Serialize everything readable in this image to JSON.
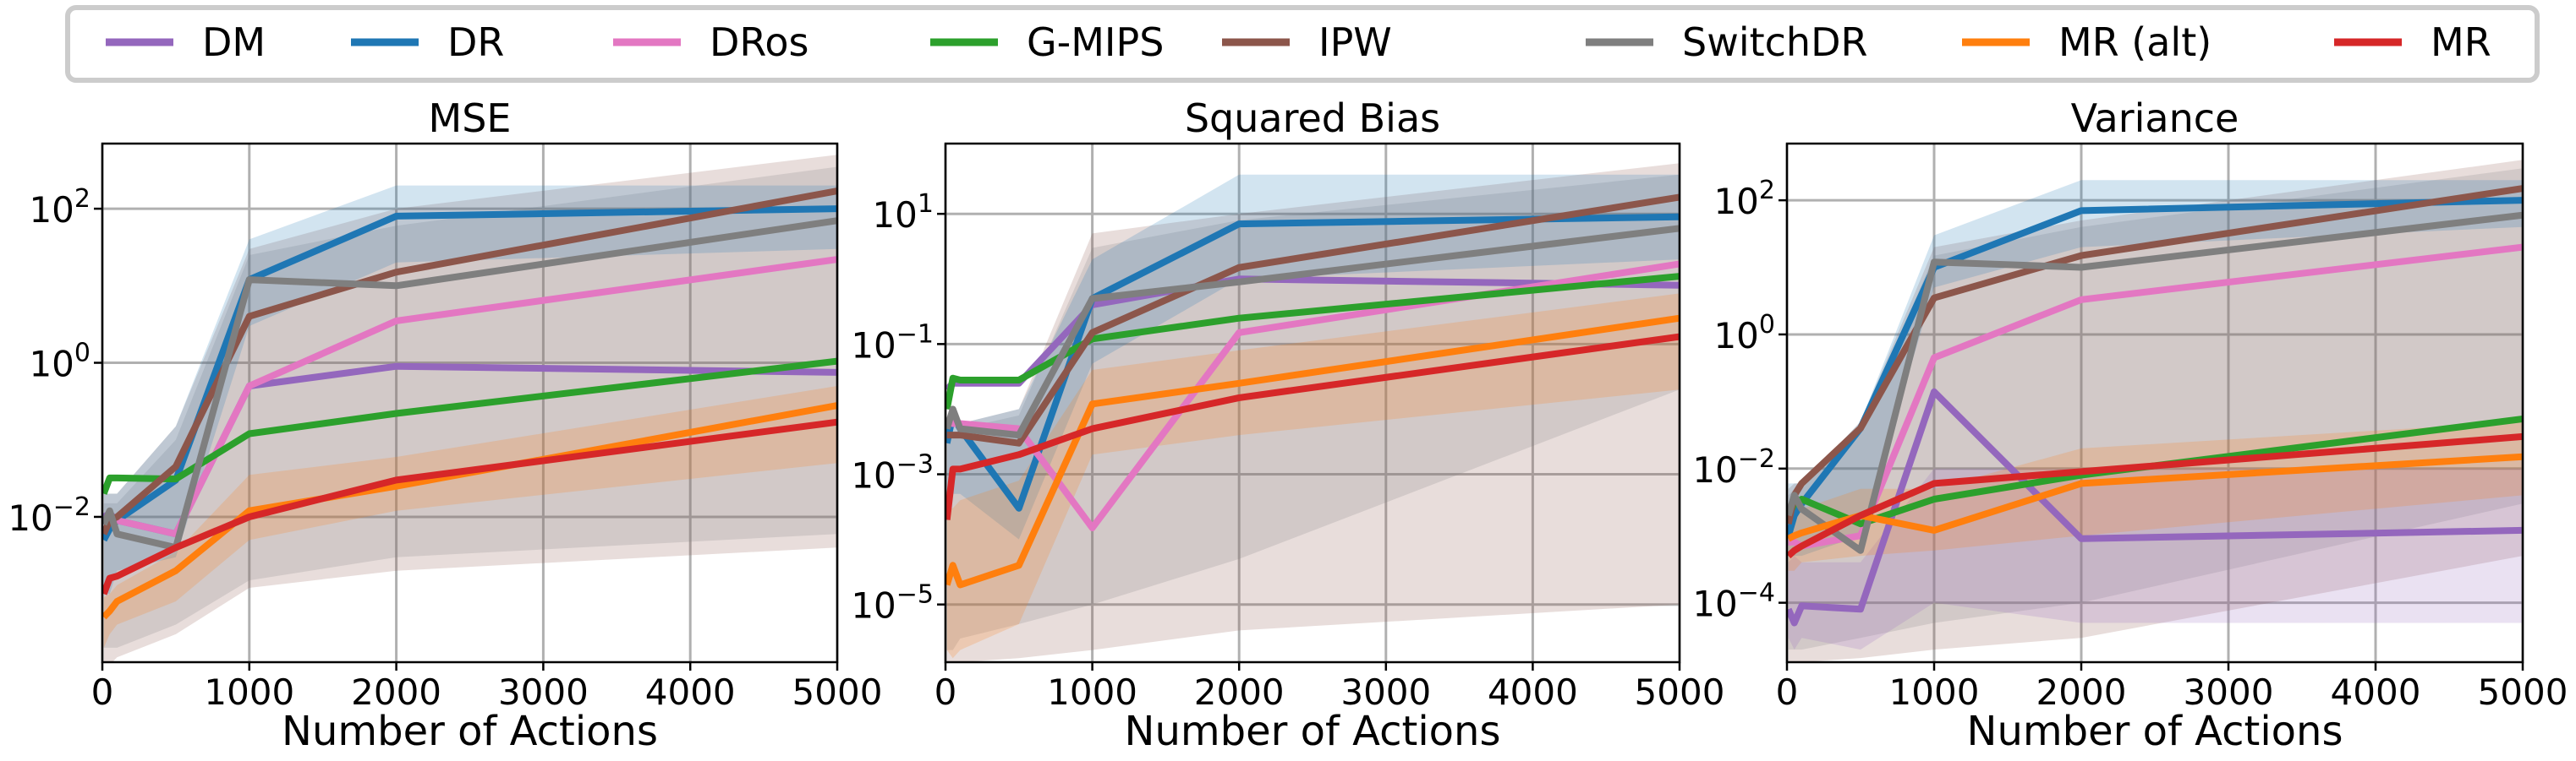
{
  "legend": {
    "placement": "top (above panels)",
    "entries": [
      {
        "name": "DM",
        "color": "#9467bd"
      },
      {
        "name": "DR",
        "color": "#1f77b4"
      },
      {
        "name": "DRos",
        "color": "#e377c2"
      },
      {
        "name": "G-MIPS",
        "color": "#2ca02c"
      },
      {
        "name": "IPW",
        "color": "#8c564b"
      },
      {
        "name": "SwitchDR",
        "color": "#7f7f7f"
      },
      {
        "name": "MR (alt)",
        "color": "#ff7f0e"
      },
      {
        "name": "MR",
        "color": "#d62728"
      }
    ]
  },
  "chart_data": [
    {
      "type": "line",
      "title": "MSE",
      "xlabel": "Number of Actions",
      "ylabel": "",
      "yscale": "log",
      "grid": true,
      "xlim": [
        0,
        5000
      ],
      "ylim": [
        0.00013,
        700
      ],
      "x": [
        10,
        50,
        100,
        500,
        1000,
        2000,
        5000
      ],
      "xticks": [
        {
          "v": 0,
          "t": "0"
        },
        {
          "v": 1000,
          "t": "1000"
        },
        {
          "v": 2000,
          "t": "2000"
        },
        {
          "v": 3000,
          "t": "3000"
        },
        {
          "v": 4000,
          "t": "4000"
        },
        {
          "v": 5000,
          "t": "5000"
        }
      ],
      "yticks": [
        {
          "v": 0.01,
          "base": "10",
          "exp": "−2"
        },
        {
          "v": 1,
          "base": "10",
          "exp": "0"
        },
        {
          "v": 100,
          "base": "10",
          "exp": "2"
        }
      ],
      "bands": [
        {
          "color": "#8c564b",
          "lo": [
            0.00011,
            0.00012,
            0.00015,
            0.0003,
            0.0012,
            0.002,
            0.004
          ],
          "hi": [
            0.02,
            0.02,
            0.02,
            0.15,
            30,
            100,
            500
          ]
        },
        {
          "color": "#7f7f7f",
          "lo": [
            0.0002,
            0.0002,
            0.0002,
            0.0004,
            0.0015,
            0.003,
            0.006
          ],
          "hi": [
            0.015,
            0.015,
            0.015,
            0.1,
            25,
            60,
            350
          ]
        },
        {
          "color": "#1f77b4",
          "lo": [
            0.001,
            0.001,
            0.002,
            0.003,
            3,
            20,
            30
          ],
          "hi": [
            0.02,
            0.02,
            0.02,
            0.15,
            40,
            200,
            200
          ]
        },
        {
          "color": "#ff7f0e",
          "lo": [
            0.0002,
            0.0003,
            0.0004,
            0.0008,
            0.005,
            0.012,
            0.05
          ],
          "hi": [
            0.0009,
            0.001,
            0.0013,
            0.0035,
            0.035,
            0.06,
            0.5
          ]
        }
      ],
      "series": [
        {
          "name": "DM",
          "color": "#9467bd",
          "values": [
            0.01,
            0.011,
            0.009,
            0.006,
            0.5,
            0.9,
            0.75
          ]
        },
        {
          "name": "DR",
          "color": "#1f77b4",
          "values": [
            0.005,
            0.007,
            0.009,
            0.03,
            12,
            80,
            100
          ]
        },
        {
          "name": "DRos",
          "color": "#e377c2",
          "values": [
            0.008,
            0.009,
            0.009,
            0.006,
            0.5,
            3.5,
            22
          ]
        },
        {
          "name": "G-MIPS",
          "color": "#2ca02c",
          "values": [
            0.02,
            0.032,
            0.032,
            0.031,
            0.12,
            0.22,
            1.05
          ]
        },
        {
          "name": "IPW",
          "color": "#8c564b",
          "values": [
            0.006,
            0.009,
            0.01,
            0.045,
            4,
            15,
            170
          ]
        },
        {
          "name": "SwitchDR",
          "color": "#7f7f7f",
          "values": [
            0.008,
            0.012,
            0.006,
            0.004,
            12,
            10,
            70
          ]
        },
        {
          "name": "MR (alt)",
          "color": "#ff7f0e",
          "values": [
            0.0005,
            0.0006,
            0.0008,
            0.002,
            0.012,
            0.025,
            0.28
          ]
        },
        {
          "name": "MR",
          "color": "#d62728",
          "values": [
            0.001,
            0.0016,
            0.0017,
            0.004,
            0.01,
            0.03,
            0.17
          ]
        }
      ]
    },
    {
      "type": "line",
      "title": "Squared Bias",
      "xlabel": "Number of Actions",
      "ylabel": "",
      "yscale": "log",
      "grid": true,
      "xlim": [
        0,
        5000
      ],
      "ylim": [
        1.3e-06,
        120
      ],
      "x": [
        10,
        50,
        100,
        500,
        1000,
        2000,
        5000
      ],
      "xticks": [
        {
          "v": 0,
          "t": "0"
        },
        {
          "v": 1000,
          "t": "1000"
        },
        {
          "v": 2000,
          "t": "2000"
        },
        {
          "v": 3000,
          "t": "3000"
        },
        {
          "v": 4000,
          "t": "4000"
        },
        {
          "v": 5000,
          "t": "5000"
        }
      ],
      "yticks": [
        {
          "v": 1e-05,
          "base": "10",
          "exp": "−5"
        },
        {
          "v": 0.001,
          "base": "10",
          "exp": "−3"
        },
        {
          "v": 0.1,
          "base": "10",
          "exp": "−1"
        },
        {
          "v": 10,
          "base": "10",
          "exp": "1"
        }
      ],
      "bands": [
        {
          "color": "#8c564b",
          "lo": [
            1.1e-06,
            1.2e-06,
            1.3e-06,
            1.5e-06,
            2e-06,
            4e-06,
            1e-05
          ],
          "hi": [
            0.005,
            0.006,
            0.006,
            0.01,
            5,
            10,
            60
          ]
        },
        {
          "color": "#7f7f7f",
          "lo": [
            2e-06,
            2e-06,
            3e-06,
            5e-06,
            1e-05,
            5e-05,
            0.02
          ],
          "hi": [
            0.004,
            0.004,
            0.005,
            0.008,
            3,
            8,
            40
          ]
        },
        {
          "color": "#1f77b4",
          "lo": [
            0.0005,
            0.0005,
            0.0005,
            0.0001,
            0.05,
            1,
            2
          ],
          "hi": [
            0.006,
            0.006,
            0.006,
            0.01,
            2,
            40,
            40
          ]
        },
        {
          "color": "#ff7f0e",
          "lo": [
            2e-06,
            1.5e-06,
            2e-06,
            5e-06,
            0.002,
            0.004,
            0.02
          ],
          "hi": [
            0.0003,
            0.0003,
            0.0004,
            0.0008,
            0.04,
            0.08,
            0.6
          ]
        }
      ],
      "series": [
        {
          "name": "DM",
          "color": "#9467bd",
          "values": [
            0.02,
            0.025,
            0.025,
            0.025,
            0.4,
            1.0,
            0.8
          ]
        },
        {
          "name": "DR",
          "color": "#1f77b4",
          "values": [
            0.003,
            0.008,
            0.005,
            0.0003,
            0.5,
            7,
            9
          ]
        },
        {
          "name": "DRos",
          "color": "#e377c2",
          "values": [
            0.007,
            0.006,
            0.006,
            0.005,
            0.00015,
            0.15,
            1.7
          ]
        },
        {
          "name": "G-MIPS",
          "color": "#2ca02c",
          "values": [
            0.01,
            0.03,
            0.028,
            0.028,
            0.12,
            0.25,
            1.1
          ]
        },
        {
          "name": "IPW",
          "color": "#8c564b",
          "values": [
            0.004,
            0.004,
            0.004,
            0.003,
            0.15,
            1.5,
            18
          ]
        },
        {
          "name": "SwitchDR",
          "color": "#7f7f7f",
          "values": [
            0.005,
            0.01,
            0.005,
            0.004,
            0.5,
            0.9,
            6
          ]
        },
        {
          "name": "MR (alt)",
          "color": "#ff7f0e",
          "values": [
            2e-05,
            4e-05,
            2e-05,
            4e-05,
            0.012,
            0.025,
            0.25
          ]
        },
        {
          "name": "MR",
          "color": "#d62728",
          "values": [
            0.0002,
            0.0012,
            0.0012,
            0.002,
            0.005,
            0.015,
            0.13
          ]
        }
      ]
    },
    {
      "type": "line",
      "title": "Variance",
      "xlabel": "Number of Actions",
      "ylabel": "",
      "yscale": "log",
      "grid": true,
      "xlim": [
        0,
        5000
      ],
      "ylim": [
        1.3e-05,
        700
      ],
      "x": [
        10,
        50,
        100,
        500,
        1000,
        2000,
        5000
      ],
      "xticks": [
        {
          "v": 0,
          "t": "0"
        },
        {
          "v": 1000,
          "t": "1000"
        },
        {
          "v": 2000,
          "t": "2000"
        },
        {
          "v": 3000,
          "t": "3000"
        },
        {
          "v": 4000,
          "t": "4000"
        },
        {
          "v": 5000,
          "t": "5000"
        }
      ],
      "yticks": [
        {
          "v": 0.0001,
          "base": "10",
          "exp": "−4"
        },
        {
          "v": 0.01,
          "base": "10",
          "exp": "−2"
        },
        {
          "v": 1,
          "base": "10",
          "exp": "0"
        },
        {
          "v": 100,
          "base": "10",
          "exp": "2"
        }
      ],
      "bands": [
        {
          "color": "#8c564b",
          "lo": [
            1.1e-05,
            1.2e-05,
            1.3e-05,
            1.5e-05,
            2e-05,
            3e-05,
            0.0005
          ],
          "hi": [
            0.005,
            0.006,
            0.006,
            0.05,
            20,
            50,
            400
          ]
        },
        {
          "color": "#7f7f7f",
          "lo": [
            2e-05,
            2e-05,
            2e-05,
            3e-05,
            5e-05,
            0.0001,
            0.003
          ],
          "hi": [
            0.004,
            0.005,
            0.005,
            0.04,
            15,
            40,
            300
          ]
        },
        {
          "color": "#1f77b4",
          "lo": [
            0.0005,
            0.0005,
            0.0005,
            0.001,
            5,
            20,
            40
          ],
          "hi": [
            0.006,
            0.006,
            0.006,
            0.05,
            30,
            200,
            200
          ]
        },
        {
          "color": "#9467bd",
          "lo": [
            3e-05,
            2e-05,
            3e-05,
            2e-05,
            0.0001,
            5e-05,
            5e-05
          ],
          "hi": [
            0.0004,
            0.0005,
            0.0004,
            0.0004,
            0.01,
            0.01,
            0.01
          ]
        },
        {
          "color": "#ff7f0e",
          "lo": [
            0.0003,
            0.0003,
            0.0004,
            0.0005,
            0.0006,
            0.001,
            0.004
          ],
          "hi": [
            0.002,
            0.002,
            0.0025,
            0.005,
            0.005,
            0.02,
            0.05
          ]
        }
      ],
      "series": [
        {
          "name": "DM",
          "color": "#9467bd",
          "values": [
            8e-05,
            5e-05,
            9e-05,
            8e-05,
            0.14,
            0.0009,
            0.0012
          ]
        },
        {
          "name": "DR",
          "color": "#1f77b4",
          "values": [
            0.001,
            0.002,
            0.003,
            0.04,
            10,
            70,
            100
          ]
        },
        {
          "name": "DRos",
          "color": "#e377c2",
          "values": [
            0.0008,
            0.0008,
            0.0007,
            0.001,
            0.45,
            3.3,
            20
          ]
        },
        {
          "name": "G-MIPS",
          "color": "#2ca02c",
          "values": [
            0.002,
            0.003,
            0.0035,
            0.0015,
            0.0035,
            0.008,
            0.055
          ]
        },
        {
          "name": "IPW",
          "color": "#8c564b",
          "values": [
            0.0015,
            0.004,
            0.006,
            0.04,
            3.5,
            15,
            150
          ]
        },
        {
          "name": "SwitchDR",
          "color": "#7f7f7f",
          "values": [
            0.002,
            0.004,
            0.0025,
            0.0006,
            12,
            10,
            60
          ]
        },
        {
          "name": "MR (alt)",
          "color": "#ff7f0e",
          "values": [
            0.0009,
            0.001,
            0.0011,
            0.002,
            0.0012,
            0.006,
            0.015
          ]
        },
        {
          "name": "MR",
          "color": "#d62728",
          "values": [
            0.0005,
            0.0006,
            0.0007,
            0.002,
            0.006,
            0.009,
            0.03
          ]
        }
      ]
    }
  ]
}
